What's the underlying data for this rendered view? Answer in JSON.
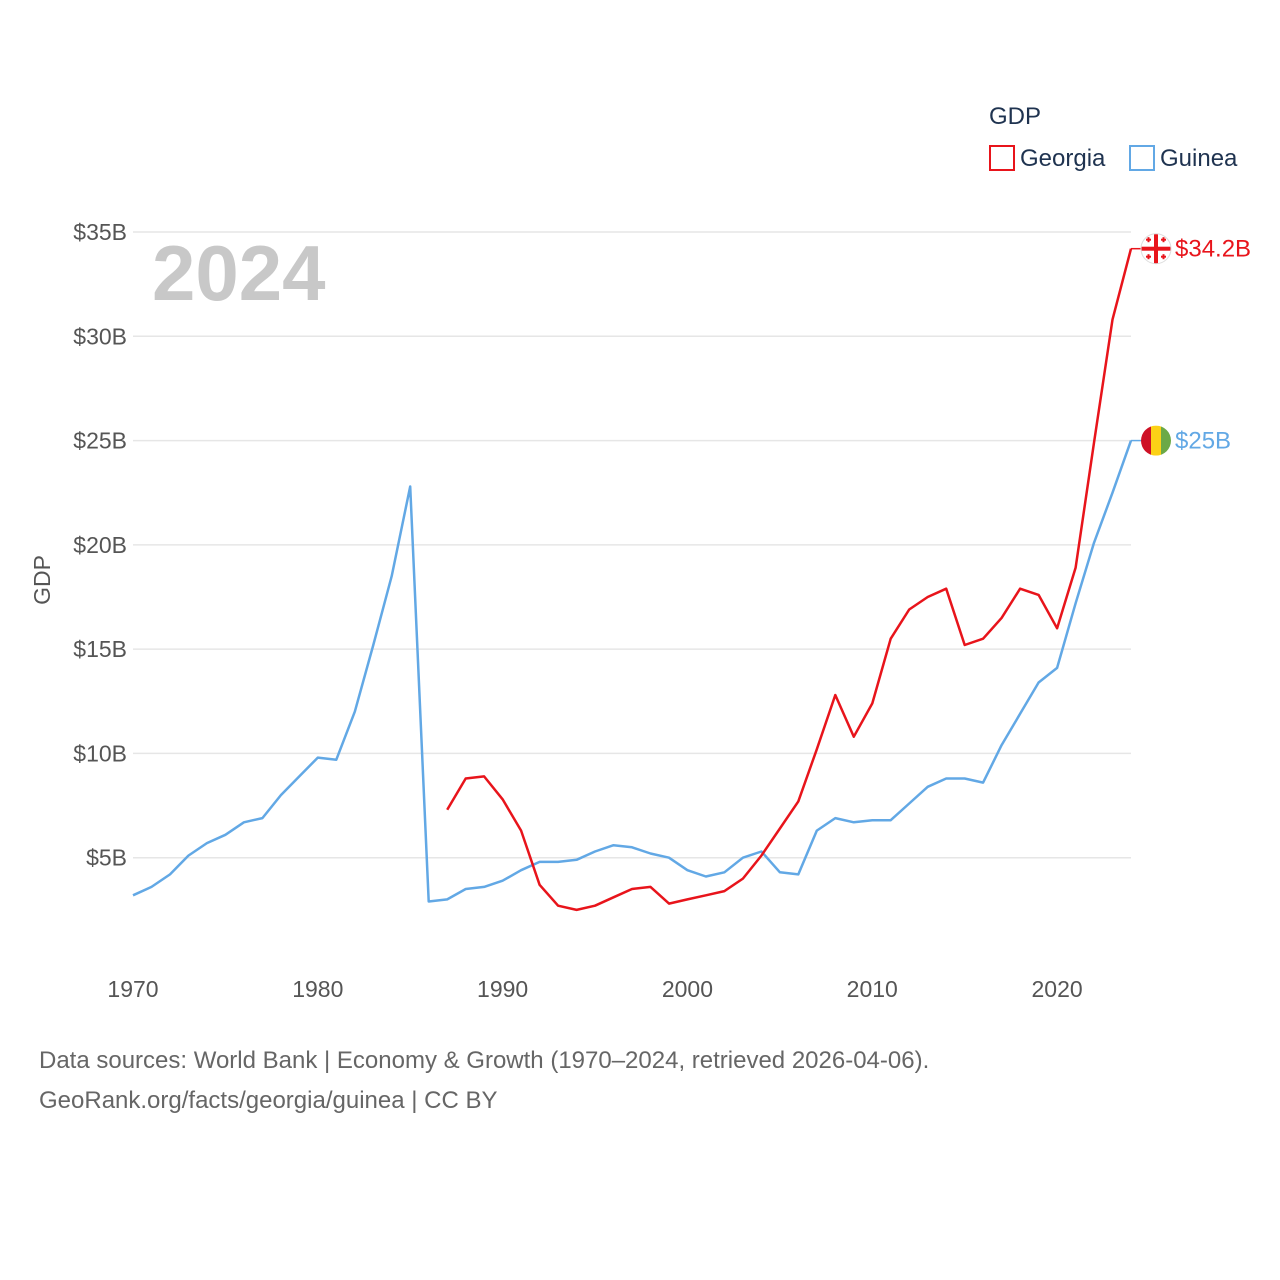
{
  "chart_data": {
    "type": "line",
    "legend_title": "GDP",
    "ylabel": "GDP",
    "year_label": "2024",
    "ylim": [
      0,
      35
    ],
    "xlim": [
      1970,
      2024
    ],
    "x_ticks": [
      1970,
      1980,
      1990,
      2000,
      2010,
      2020
    ],
    "x_tick_labels": [
      "1970",
      "1980",
      "1990",
      "2000",
      "2010",
      "2020"
    ],
    "y_ticks": [
      5,
      10,
      15,
      20,
      25,
      30,
      35
    ],
    "y_tick_labels": [
      "$5B",
      "$10B",
      "$15B",
      "$20B",
      "$25B",
      "$30B",
      "$35B"
    ],
    "grid": true,
    "series": [
      {
        "name": "Georgia",
        "color": "#e8141b",
        "end_label": "$34.2B",
        "flag_icon": "georgia-flag-icon",
        "x": [
          1987,
          1988,
          1989,
          1990,
          1991,
          1992,
          1993,
          1994,
          1995,
          1996,
          1997,
          1998,
          1999,
          2000,
          2001,
          2002,
          2003,
          2004,
          2005,
          2006,
          2007,
          2008,
          2009,
          2010,
          2011,
          2012,
          2013,
          2014,
          2015,
          2016,
          2017,
          2018,
          2019,
          2020,
          2021,
          2022,
          2023,
          2024
        ],
        "values": [
          7.3,
          8.8,
          8.9,
          7.8,
          6.3,
          3.7,
          2.7,
          2.5,
          2.7,
          3.1,
          3.5,
          3.6,
          2.8,
          3.0,
          3.2,
          3.4,
          4.0,
          5.1,
          6.4,
          7.7,
          10.2,
          12.8,
          10.8,
          12.4,
          15.5,
          16.9,
          17.5,
          17.9,
          15.2,
          15.5,
          16.5,
          17.9,
          17.6,
          16.0,
          18.9,
          24.9,
          30.8,
          34.2
        ]
      },
      {
        "name": "Guinea",
        "color": "#62a8e5",
        "end_label": "$25B",
        "flag_icon": "guinea-flag-icon",
        "x": [
          1970,
          1971,
          1972,
          1973,
          1974,
          1975,
          1976,
          1977,
          1978,
          1979,
          1980,
          1981,
          1982,
          1983,
          1984,
          1985,
          1986,
          1987,
          1988,
          1989,
          1990,
          1991,
          1992,
          1993,
          1994,
          1995,
          1996,
          1997,
          1998,
          1999,
          2000,
          2001,
          2002,
          2003,
          2004,
          2005,
          2006,
          2007,
          2008,
          2009,
          2010,
          2011,
          2012,
          2013,
          2014,
          2015,
          2016,
          2017,
          2018,
          2019,
          2020,
          2021,
          2022,
          2023,
          2024
        ],
        "values": [
          3.2,
          3.6,
          4.2,
          5.1,
          5.7,
          6.1,
          6.7,
          6.9,
          8.0,
          8.9,
          9.8,
          9.7,
          12.0,
          15.2,
          18.5,
          22.8,
          2.9,
          3.0,
          3.5,
          3.6,
          3.9,
          4.4,
          4.8,
          4.8,
          4.9,
          5.3,
          5.6,
          5.5,
          5.2,
          5.0,
          4.4,
          4.1,
          4.3,
          5.0,
          5.3,
          4.3,
          4.2,
          6.3,
          6.9,
          6.7,
          6.8,
          6.8,
          7.6,
          8.4,
          8.8,
          8.8,
          8.6,
          10.4,
          11.9,
          13.4,
          14.1,
          17.2,
          20.1,
          22.5,
          25.0
        ]
      }
    ]
  },
  "source": {
    "line1": "Data sources: World Bank | Economy & Growth (1970–2024, retrieved 2026-04-06).",
    "line2": "GeoRank.org/facts/georgia/guinea | CC BY"
  }
}
